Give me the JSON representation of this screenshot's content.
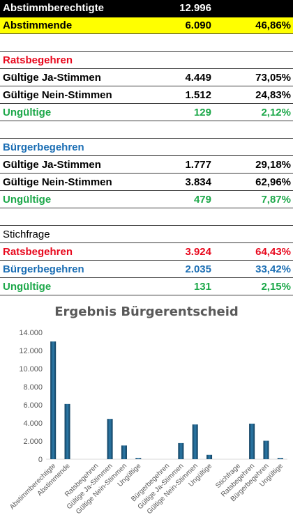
{
  "table": {
    "rows": [
      {
        "label": "Abstimmberechtigte",
        "value": "12.996",
        "pct": ""
      },
      {
        "label": "Abstimmende",
        "value": "6.090",
        "pct": "46,86%"
      },
      {
        "label": "",
        "value": "",
        "pct": ""
      },
      {
        "label": "Ratsbegehren",
        "value": "",
        "pct": ""
      },
      {
        "label": "Gültige Ja-Stimmen",
        "value": "4.449",
        "pct": "73,05%"
      },
      {
        "label": "Gültige Nein-Stimmen",
        "value": "1.512",
        "pct": "24,83%"
      },
      {
        "label": "Ungültige",
        "value": "129",
        "pct": "2,12%"
      },
      {
        "label": "",
        "value": "",
        "pct": ""
      },
      {
        "label": "Bürgerbegehren",
        "value": "",
        "pct": ""
      },
      {
        "label": "Gültige Ja-Stimmen",
        "value": "1.777",
        "pct": "29,18%"
      },
      {
        "label": "Gültige Nein-Stimmen",
        "value": "3.834",
        "pct": "62,96%"
      },
      {
        "label": "Ungültige",
        "value": "479",
        "pct": "7,87%"
      },
      {
        "label": "",
        "value": "",
        "pct": ""
      },
      {
        "label": "Stichfrage",
        "value": "",
        "pct": ""
      },
      {
        "label": "Ratsbegehren",
        "value": "3.924",
        "pct": "64,43%"
      },
      {
        "label": "Bürgerbegehren",
        "value": "2.035",
        "pct": "33,42%"
      },
      {
        "label": "Ungültige",
        "value": "131",
        "pct": "2,15%"
      }
    ]
  },
  "colors": {
    "header_bg": "#000000",
    "highlight_bg": "#ffff00",
    "ratsbegehren": "#e8091e",
    "buergerbegehren": "#1b6eb4",
    "ungueltige": "#1da84a",
    "bar": "#1f5f86"
  },
  "chart_data": {
    "type": "bar",
    "title": "Ergebnis Bürgerentscheid",
    "xlabel": "",
    "ylabel": "",
    "ylim": [
      0,
      14000
    ],
    "yticks": [
      "0",
      "2.000",
      "4.000",
      "6.000",
      "8.000",
      "10.000",
      "12.000",
      "14.000"
    ],
    "grid": false,
    "categories": [
      "Abstimmberechtigte",
      "Abstimmende",
      "",
      "Ratsbegehren",
      "Gültige Ja-Stimmen",
      "Gültige Nein-Stimmen",
      "Ungültige",
      "",
      "Bürgerbegehren",
      "Gültige Ja-Stimmen",
      "Gültige Nein-Stimmen",
      "Ungültige",
      "",
      "Stichfrage",
      "Ratsbegehren",
      "Bürgerbegehren",
      "Ungültige"
    ],
    "values": [
      12996,
      6090,
      null,
      null,
      4449,
      1512,
      129,
      null,
      null,
      1777,
      3834,
      479,
      null,
      null,
      3924,
      2035,
      131
    ]
  }
}
